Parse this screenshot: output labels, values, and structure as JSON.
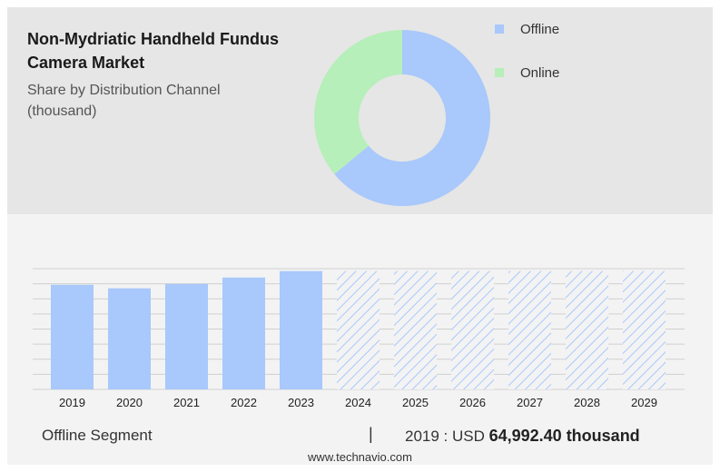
{
  "header": {
    "title": "Non-Mydriatic Handheld Fundus Camera Market",
    "subtitle": "Share by Distribution Channel (thousand)"
  },
  "colors": {
    "offline": "#a9c8fb",
    "online": "#b6efb9",
    "grid": "#d0d0d0",
    "forecast_hatch": "#a9c8fb"
  },
  "chart_data": [
    {
      "type": "pie",
      "variant": "donut",
      "legend_position": "top-right",
      "categories": [
        "Offline",
        "Online"
      ],
      "values": [
        64,
        36
      ],
      "value_unit": "percent"
    },
    {
      "type": "bar",
      "categories": [
        "2019",
        "2020",
        "2021",
        "2022",
        "2023",
        "2024",
        "2025",
        "2026",
        "2027",
        "2028",
        "2029"
      ],
      "series": [
        {
          "name": "Offline Segment",
          "values": [
            64992.4,
            62800,
            65500,
            69500,
            73500,
            73500,
            73500,
            73500,
            73500,
            73500,
            73500
          ]
        }
      ],
      "forecast_from": "2024",
      "forecast_style": "hatched",
      "ylim": [
        0,
        75000
      ],
      "grid": true,
      "y_tick_labels_visible": false
    }
  ],
  "footer": {
    "segment_label": "Offline Segment",
    "separator": "|",
    "year_label": "2019 : USD ",
    "value_label": "64,992.40 thousand"
  },
  "source": "www.technavio.com"
}
